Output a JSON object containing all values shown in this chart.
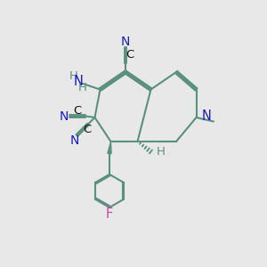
{
  "bg": "#e8e8e8",
  "bc": "#5a9080",
  "bw": 1.5,
  "cN": "#1a1acc",
  "cF": "#cc44aa",
  "cH": "#5a9080",
  "cC": "#111111",
  "fs": 9.5,
  "figsize": [
    3.0,
    3.0
  ],
  "dpi": 100,
  "xl": [
    0,
    10
  ],
  "yl": [
    0,
    10
  ]
}
